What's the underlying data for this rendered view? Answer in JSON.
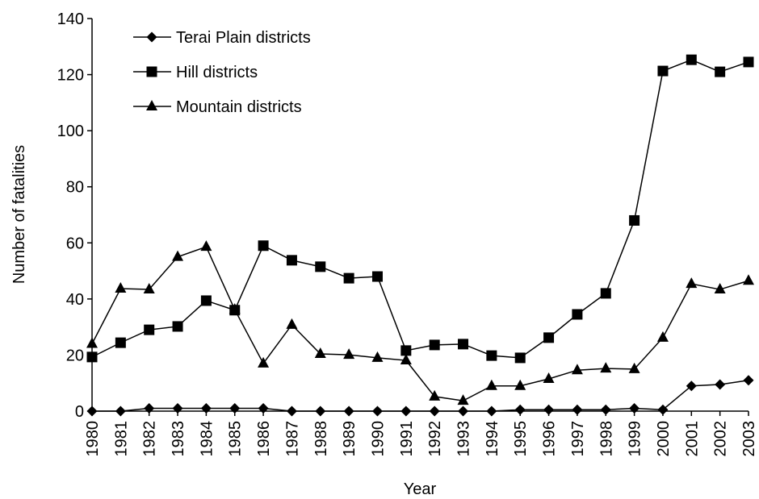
{
  "chart_data": {
    "type": "line",
    "x_label": "Year",
    "y_label": "Number of fatalities",
    "categories": [
      "1980",
      "1981",
      "1982",
      "1983",
      "1984",
      "1985",
      "1986",
      "1987",
      "1988",
      "1989",
      "1990",
      "1991",
      "1992",
      "1993",
      "1994",
      "1995",
      "1996",
      "1997",
      "1998",
      "1999",
      "2000",
      "2001",
      "2002",
      "2003"
    ],
    "series": [
      {
        "name": "Terai Plain districts",
        "color": "#000000",
        "marker": "diamond",
        "values": [
          0,
          0,
          1,
          1,
          1,
          1,
          1,
          0,
          0,
          0,
          0,
          0,
          0,
          0,
          0,
          0.5,
          0.5,
          0.5,
          0.5,
          1,
          0.5,
          9,
          9.5,
          11
        ]
      },
      {
        "name": "Hill districts",
        "color": "#000000",
        "marker": "square",
        "values": [
          19.3,
          24.4,
          29,
          30.2,
          39.4,
          36,
          59,
          53.8,
          51.5,
          47.4,
          48,
          21.6,
          23.6,
          23.9,
          19.8,
          19,
          26.2,
          34.5,
          42,
          68,
          121.3,
          125.3,
          121,
          124.5
        ]
      },
      {
        "name": "Mountain districts",
        "color": "#000000",
        "marker": "triangle",
        "values": [
          24,
          43.7,
          43.4,
          55,
          58.6,
          36.2,
          17,
          30.8,
          20.4,
          20.1,
          19,
          18.1,
          5.2,
          3.7,
          9,
          9,
          11.5,
          14.6,
          15.2,
          15,
          26.2,
          45.4,
          43.4,
          46.5
        ]
      }
    ],
    "ylim": [
      0,
      140
    ],
    "yticks": [
      0,
      20,
      40,
      60,
      80,
      100,
      120,
      140
    ],
    "grid": false,
    "legend": "upper left"
  }
}
